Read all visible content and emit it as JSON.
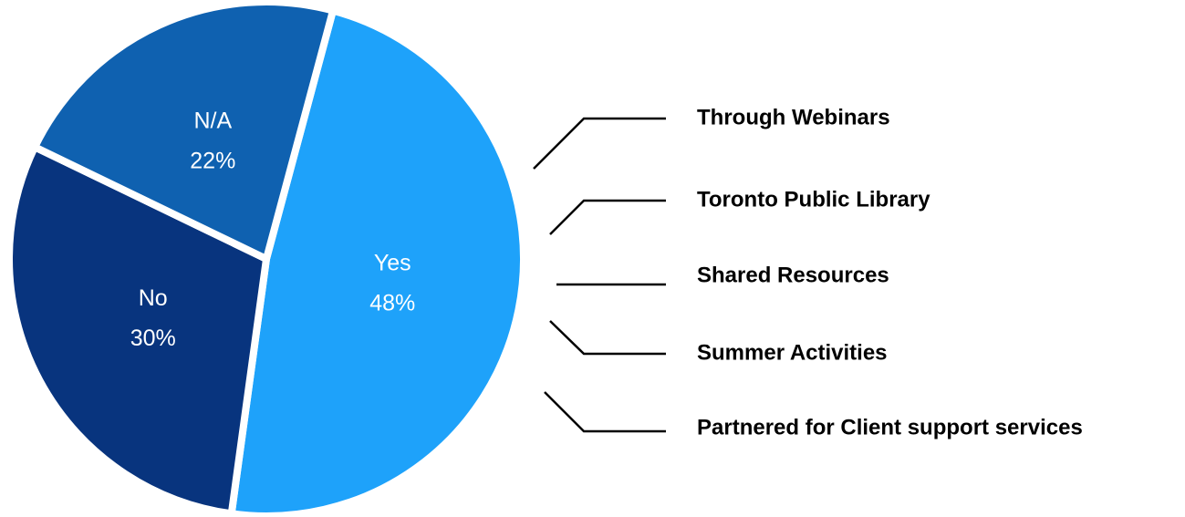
{
  "chart_data": {
    "type": "pie",
    "categories": [
      "Yes",
      "No",
      "N/A"
    ],
    "values": [
      48,
      30,
      22
    ],
    "value_labels": [
      "48%",
      "30%",
      "22%"
    ],
    "colors": [
      "#1ea2fa",
      "#08347e",
      "#0f61b0"
    ],
    "annotations": [
      "Through Webinars",
      "Toronto Public Library",
      "Shared Resources",
      "Summer Activities",
      "Partnered for Client support services"
    ]
  }
}
